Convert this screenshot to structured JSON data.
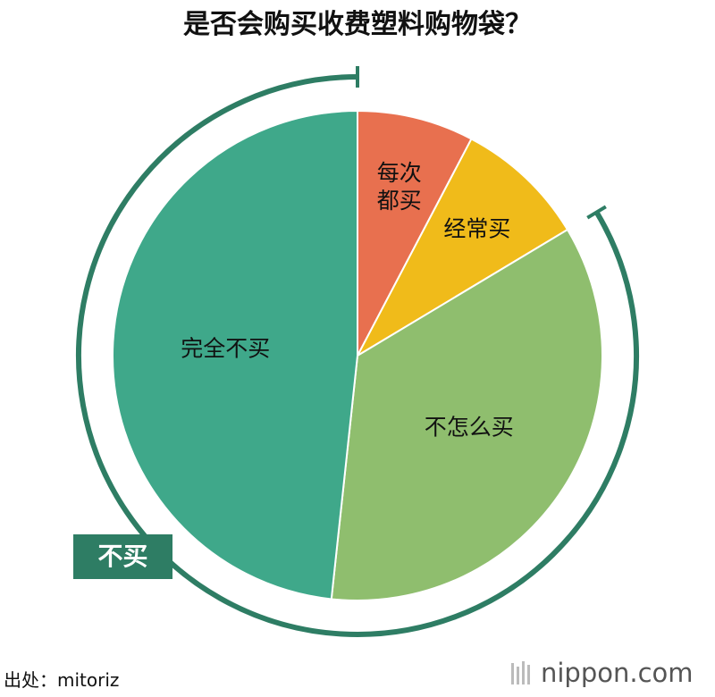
{
  "chart_data": {
    "type": "pie",
    "title": "是否会购买收费塑料购物袋？",
    "categories": [
      "每次都买",
      "经常买",
      "不怎么买",
      "完全不买"
    ],
    "values": [
      7.7,
      8.7,
      35.3,
      48.3
    ],
    "colors": [
      "#e8704f",
      "#f0bb1a",
      "#8fbe6e",
      "#3fa88a"
    ],
    "group_label": "不买",
    "source": "出处：mitoriz",
    "brand": "nippon.com"
  }
}
